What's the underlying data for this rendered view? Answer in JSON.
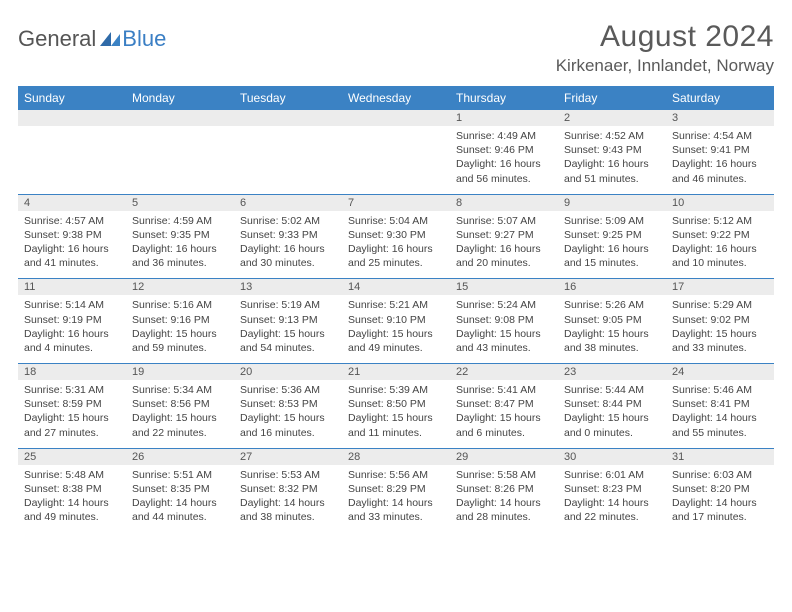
{
  "brand": {
    "part1": "General",
    "part2": "Blue"
  },
  "title": "August 2024",
  "location": "Kirkenaer, Innlandet, Norway",
  "colors": {
    "header_bg": "#3b82c4",
    "header_text": "#ffffff",
    "daynum_bg": "#ececec",
    "border": "#3b82c4",
    "text": "#444444",
    "title_text": "#5a5a5a"
  },
  "weekdays": [
    "Sunday",
    "Monday",
    "Tuesday",
    "Wednesday",
    "Thursday",
    "Friday",
    "Saturday"
  ],
  "weeks": [
    [
      null,
      null,
      null,
      null,
      {
        "d": "1",
        "sr": "4:49 AM",
        "ss": "9:46 PM",
        "dl": "16 hours and 56 minutes."
      },
      {
        "d": "2",
        "sr": "4:52 AM",
        "ss": "9:43 PM",
        "dl": "16 hours and 51 minutes."
      },
      {
        "d": "3",
        "sr": "4:54 AM",
        "ss": "9:41 PM",
        "dl": "16 hours and 46 minutes."
      }
    ],
    [
      {
        "d": "4",
        "sr": "4:57 AM",
        "ss": "9:38 PM",
        "dl": "16 hours and 41 minutes."
      },
      {
        "d": "5",
        "sr": "4:59 AM",
        "ss": "9:35 PM",
        "dl": "16 hours and 36 minutes."
      },
      {
        "d": "6",
        "sr": "5:02 AM",
        "ss": "9:33 PM",
        "dl": "16 hours and 30 minutes."
      },
      {
        "d": "7",
        "sr": "5:04 AM",
        "ss": "9:30 PM",
        "dl": "16 hours and 25 minutes."
      },
      {
        "d": "8",
        "sr": "5:07 AM",
        "ss": "9:27 PM",
        "dl": "16 hours and 20 minutes."
      },
      {
        "d": "9",
        "sr": "5:09 AM",
        "ss": "9:25 PM",
        "dl": "16 hours and 15 minutes."
      },
      {
        "d": "10",
        "sr": "5:12 AM",
        "ss": "9:22 PM",
        "dl": "16 hours and 10 minutes."
      }
    ],
    [
      {
        "d": "11",
        "sr": "5:14 AM",
        "ss": "9:19 PM",
        "dl": "16 hours and 4 minutes."
      },
      {
        "d": "12",
        "sr": "5:16 AM",
        "ss": "9:16 PM",
        "dl": "15 hours and 59 minutes."
      },
      {
        "d": "13",
        "sr": "5:19 AM",
        "ss": "9:13 PM",
        "dl": "15 hours and 54 minutes."
      },
      {
        "d": "14",
        "sr": "5:21 AM",
        "ss": "9:10 PM",
        "dl": "15 hours and 49 minutes."
      },
      {
        "d": "15",
        "sr": "5:24 AM",
        "ss": "9:08 PM",
        "dl": "15 hours and 43 minutes."
      },
      {
        "d": "16",
        "sr": "5:26 AM",
        "ss": "9:05 PM",
        "dl": "15 hours and 38 minutes."
      },
      {
        "d": "17",
        "sr": "5:29 AM",
        "ss": "9:02 PM",
        "dl": "15 hours and 33 minutes."
      }
    ],
    [
      {
        "d": "18",
        "sr": "5:31 AM",
        "ss": "8:59 PM",
        "dl": "15 hours and 27 minutes."
      },
      {
        "d": "19",
        "sr": "5:34 AM",
        "ss": "8:56 PM",
        "dl": "15 hours and 22 minutes."
      },
      {
        "d": "20",
        "sr": "5:36 AM",
        "ss": "8:53 PM",
        "dl": "15 hours and 16 minutes."
      },
      {
        "d": "21",
        "sr": "5:39 AM",
        "ss": "8:50 PM",
        "dl": "15 hours and 11 minutes."
      },
      {
        "d": "22",
        "sr": "5:41 AM",
        "ss": "8:47 PM",
        "dl": "15 hours and 6 minutes."
      },
      {
        "d": "23",
        "sr": "5:44 AM",
        "ss": "8:44 PM",
        "dl": "15 hours and 0 minutes."
      },
      {
        "d": "24",
        "sr": "5:46 AM",
        "ss": "8:41 PM",
        "dl": "14 hours and 55 minutes."
      }
    ],
    [
      {
        "d": "25",
        "sr": "5:48 AM",
        "ss": "8:38 PM",
        "dl": "14 hours and 49 minutes."
      },
      {
        "d": "26",
        "sr": "5:51 AM",
        "ss": "8:35 PM",
        "dl": "14 hours and 44 minutes."
      },
      {
        "d": "27",
        "sr": "5:53 AM",
        "ss": "8:32 PM",
        "dl": "14 hours and 38 minutes."
      },
      {
        "d": "28",
        "sr": "5:56 AM",
        "ss": "8:29 PM",
        "dl": "14 hours and 33 minutes."
      },
      {
        "d": "29",
        "sr": "5:58 AM",
        "ss": "8:26 PM",
        "dl": "14 hours and 28 minutes."
      },
      {
        "d": "30",
        "sr": "6:01 AM",
        "ss": "8:23 PM",
        "dl": "14 hours and 22 minutes."
      },
      {
        "d": "31",
        "sr": "6:03 AM",
        "ss": "8:20 PM",
        "dl": "14 hours and 17 minutes."
      }
    ]
  ]
}
